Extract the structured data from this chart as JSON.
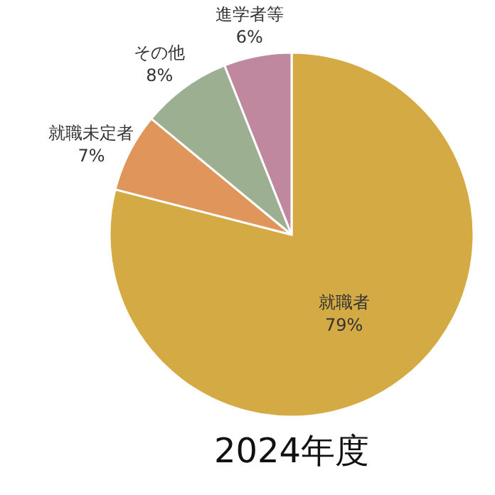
{
  "chart_data": {
    "type": "pie",
    "title": "2024年度",
    "categories": [
      "就職者",
      "就職未定者",
      "その他",
      "進学者等"
    ],
    "values": [
      79,
      7,
      8,
      6
    ],
    "colors": [
      "#d4aa45",
      "#e0955a",
      "#9caf90",
      "#c0889e"
    ],
    "value_labels": [
      "79%",
      "7%",
      "8%",
      "6%"
    ]
  }
}
